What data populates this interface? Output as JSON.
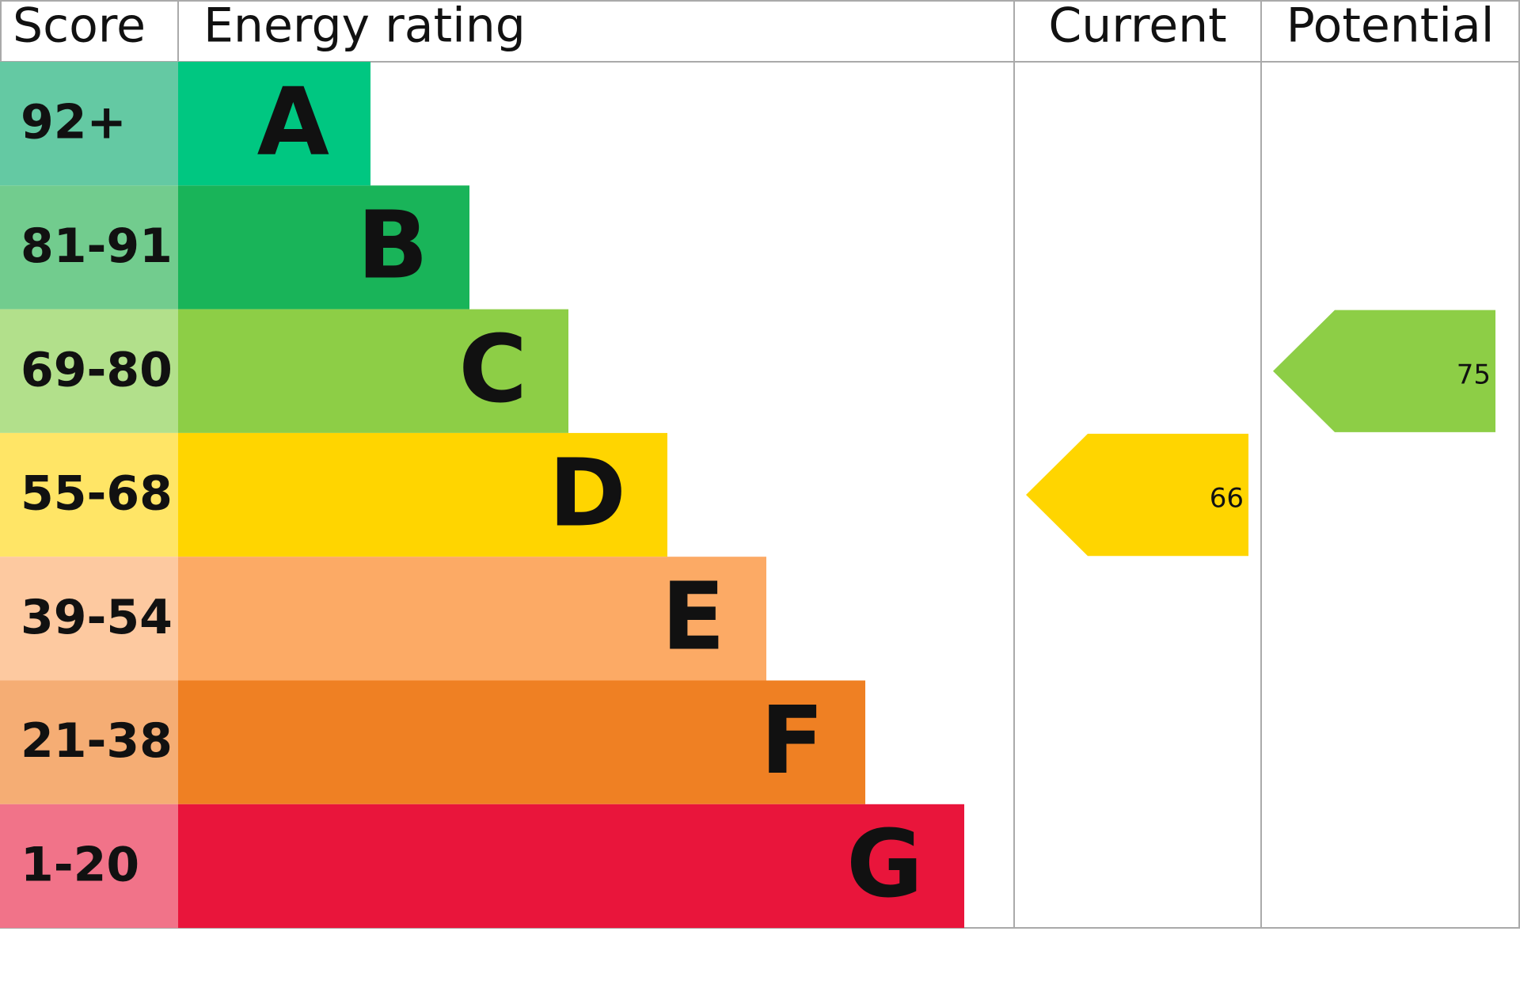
{
  "header": {
    "score": "Score",
    "rating": "Energy rating",
    "current": "Current",
    "potential": "Potential"
  },
  "rows": [
    {
      "score": "92+",
      "letter": "A",
      "color": "#00c781",
      "score_color": "#64c9a3"
    },
    {
      "score": "81-91",
      "letter": "B",
      "color": "#19b459",
      "score_color": "#72cc8e"
    },
    {
      "score": "69-80",
      "letter": "C",
      "color": "#8dce46",
      "score_color": "#b2e08b"
    },
    {
      "score": "55-68",
      "letter": "D",
      "color": "#ffd500",
      "score_color": "#ffe566"
    },
    {
      "score": "39-54",
      "letter": "E",
      "color": "#fcaa65",
      "score_color": "#fdc9a0"
    },
    {
      "score": "21-38",
      "letter": "F",
      "color": "#ef8023",
      "score_color": "#f5ad74"
    },
    {
      "score": "1-20",
      "letter": "G",
      "color": "#e9153b",
      "score_color": "#f17389"
    }
  ],
  "current": 66,
  "potential": 75
}
